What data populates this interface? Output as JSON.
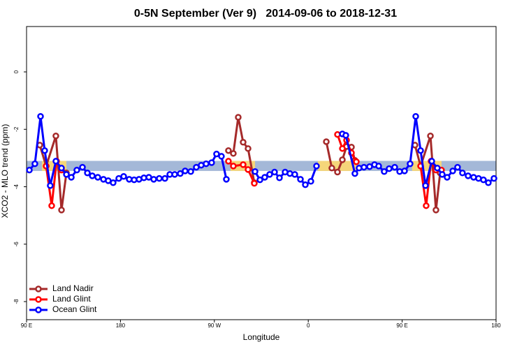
{
  "chart_data": {
    "type": "line",
    "title": "0-5N September (Ver 9)   2014-09-06 to 2018-12-31",
    "x_label": "Longitude",
    "y_label": "XCO2 - MLO trend (ppm)",
    "xlim": [
      90,
      540
    ],
    "ylim": [
      -8.63,
      1.58
    ],
    "xticks": [
      {
        "value": 90,
        "label": "90 E"
      },
      180,
      {
        "value": 270,
        "label": "90 W"
      },
      {
        "value": 360,
        "label": "0"
      },
      {
        "value": 450,
        "label": "90 E"
      },
      {
        "value": 540,
        "label": "180"
      }
    ],
    "yticks": [
      -8,
      -6,
      -4,
      -2,
      0
    ],
    "legend": "bottom-left",
    "reference_band": {
      "color": "#a4b8d8",
      "ylim": [
        -3.45,
        -3.1
      ]
    },
    "highlight_bands": {
      "color": "#f5d67a",
      "ylim": [
        -3.45,
        -3.1
      ],
      "ranges": [
        [
          104.7,
          128.2
        ],
        [
          285.5,
          309.0
        ],
        [
          369.3,
          406.1
        ],
        [
          459.6,
          487.7
        ]
      ]
    },
    "series": [
      {
        "name": "Land Nadir",
        "color": "#a52a2a",
        "x": [
          102.7,
          108.8,
          118.1,
          123.5,
          128.2,
          null,
          283.5,
          288.2,
          292.9,
          297.6,
          302.3,
          308.3,
          null,
          377.3,
          382.6,
          388.0,
          392.7,
          396.7,
          401.4,
          404.7,
          null,
          462.3,
          467.7,
          477.1,
          482.4,
          486.4
        ],
        "values": [
          -2.55,
          -3.28,
          -2.23,
          -4.81,
          -3.52,
          null,
          -2.74,
          -2.84,
          -1.58,
          -2.45,
          -2.67,
          -3.86,
          null,
          -2.43,
          -3.35,
          -3.49,
          -3.06,
          -2.6,
          -2.62,
          -3.08,
          null,
          -2.55,
          -3.28,
          -2.23,
          -4.81,
          -3.52
        ]
      },
      {
        "name": "Land Glint",
        "color": "#ff0000",
        "x": [
          108.8,
          114.1,
          118.8,
          123.5,
          null,
          283.5,
          288.2,
          297.6,
          302.3,
          308.3,
          null,
          388.0,
          392.7,
          396.7,
          401.4,
          406.1,
          null,
          467.7,
          473.0,
          477.7,
          482.4,
          487.7
        ],
        "values": [
          -3.28,
          -4.66,
          -3.11,
          -3.42,
          null,
          -3.11,
          -3.28,
          -3.23,
          -3.4,
          -3.88,
          null,
          -2.18,
          -2.67,
          -2.38,
          -2.82,
          -3.13,
          null,
          -3.28,
          -4.66,
          -3.11,
          -3.42,
          -3.42
        ]
      },
      {
        "name": "Ocean Glint",
        "color": "#0000ff",
        "x": [
          92.7,
          98.0,
          103.4,
          107.4,
          112.7,
          118.1,
          123.5,
          128.2,
          132.9,
          138.2,
          143.6,
          148.3,
          153.0,
          158.3,
          163.7,
          168.3,
          173.0,
          178.4,
          183.1,
          188.4,
          193.1,
          197.8,
          202.5,
          207.2,
          211.9,
          217.2,
          222.6,
          227.3,
          232.0,
          237.3,
          242.0,
          247.4,
          252.7,
          257.4,
          262.1,
          267.4,
          272.1,
          276.8,
          281.5,
          null,
          309.0,
          313.7,
          318.3,
          323.0,
          327.7,
          332.4,
          337.8,
          342.4,
          347.1,
          352.5,
          357.2,
          362.5,
          367.9,
          null,
          392.7,
          396.0,
          404.7,
          408.7,
          413.4,
          418.8,
          423.5,
          427.5,
          432.8,
          437.5,
          442.9,
          447.6,
          452.3,
          457.6,
          463.0,
          467.7,
          472.4,
          478.4,
          483.7,
          488.4,
          493.1,
          498.5,
          503.1,
          507.8,
          513.2,
          518.5,
          523.2,
          527.9,
          532.6,
          538.0
        ],
        "values": [
          -3.42,
          -3.2,
          -1.55,
          -2.74,
          -3.96,
          -3.11,
          -3.35,
          -3.57,
          -3.67,
          -3.42,
          -3.32,
          -3.52,
          -3.62,
          -3.67,
          -3.74,
          -3.79,
          -3.86,
          -3.71,
          -3.64,
          -3.74,
          -3.76,
          -3.74,
          -3.69,
          -3.67,
          -3.74,
          -3.71,
          -3.71,
          -3.57,
          -3.57,
          -3.54,
          -3.45,
          -3.47,
          -3.32,
          -3.25,
          -3.2,
          -3.16,
          -2.86,
          -2.94,
          -3.74,
          null,
          -3.47,
          -3.76,
          -3.67,
          -3.57,
          -3.49,
          -3.69,
          -3.49,
          -3.54,
          -3.57,
          -3.74,
          -3.93,
          -3.81,
          -3.28,
          null,
          -2.16,
          -2.21,
          -3.54,
          -3.35,
          -3.32,
          -3.3,
          -3.23,
          -3.28,
          -3.47,
          -3.37,
          -3.32,
          -3.47,
          -3.45,
          -3.2,
          -1.55,
          -2.74,
          -3.96,
          -3.11,
          -3.35,
          -3.57,
          -3.67,
          -3.45,
          -3.32,
          -3.52,
          -3.62,
          -3.67,
          -3.71,
          -3.76,
          -3.86,
          -3.71
        ]
      }
    ]
  }
}
